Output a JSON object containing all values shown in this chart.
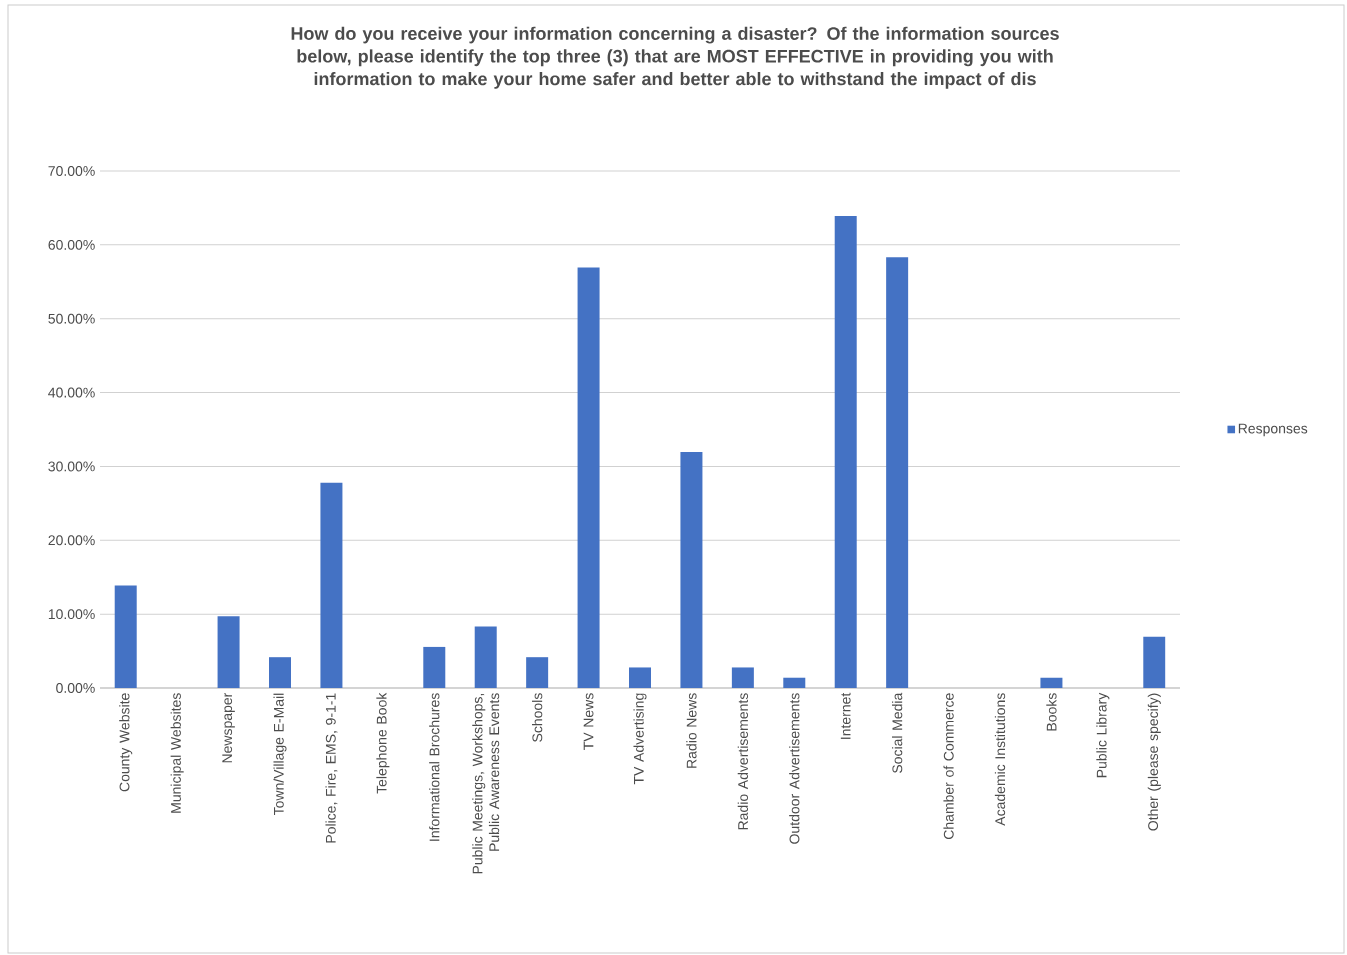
{
  "chart_data": {
    "type": "bar",
    "title": "How do you receive your information concerning a disaster? Of the information sources below, please identify the top three (3) that are MOST EFFECTIVE in providing you with information to make your home safer and better able to withstand the impact of dis",
    "categories": [
      "County Website",
      "Municipal Websites",
      "Newspaper",
      "Town/Village E-Mail",
      "Police, Fire, EMS, 9-1-1",
      "Telephone Book",
      "Informational Brochures",
      "Public Meetings, Workshops, Public Awareness Events",
      "Schools",
      "TV News",
      "TV Advertising",
      "Radio News",
      "Radio Advertisements",
      "Outdoor Advertisements",
      "Internet",
      "Social Media",
      "Chamber of Commerce",
      "Academic Institutions",
      "Books",
      "Public Library",
      "Other (please specify)"
    ],
    "series": [
      {
        "name": "Responses",
        "color": "#4472c4",
        "values": [
          13.89,
          0,
          9.72,
          4.17,
          27.78,
          0,
          5.56,
          8.33,
          4.17,
          56.94,
          2.78,
          31.94,
          2.78,
          1.39,
          63.89,
          58.33,
          0,
          0,
          1.39,
          0,
          6.94
        ]
      }
    ],
    "ylim": [
      0,
      70
    ],
    "yticks": [
      {
        "value": 0,
        "label": "0.00%"
      },
      {
        "value": 10,
        "label": "10.00%"
      },
      {
        "value": 20,
        "label": "20.00%"
      },
      {
        "value": 30,
        "label": "30.00%"
      },
      {
        "value": 40,
        "label": "40.00%"
      },
      {
        "value": 50,
        "label": "50.00%"
      },
      {
        "value": 60,
        "label": "60.00%"
      },
      {
        "value": 70,
        "label": "70.00%"
      }
    ],
    "grid": "y",
    "legend": "right"
  }
}
